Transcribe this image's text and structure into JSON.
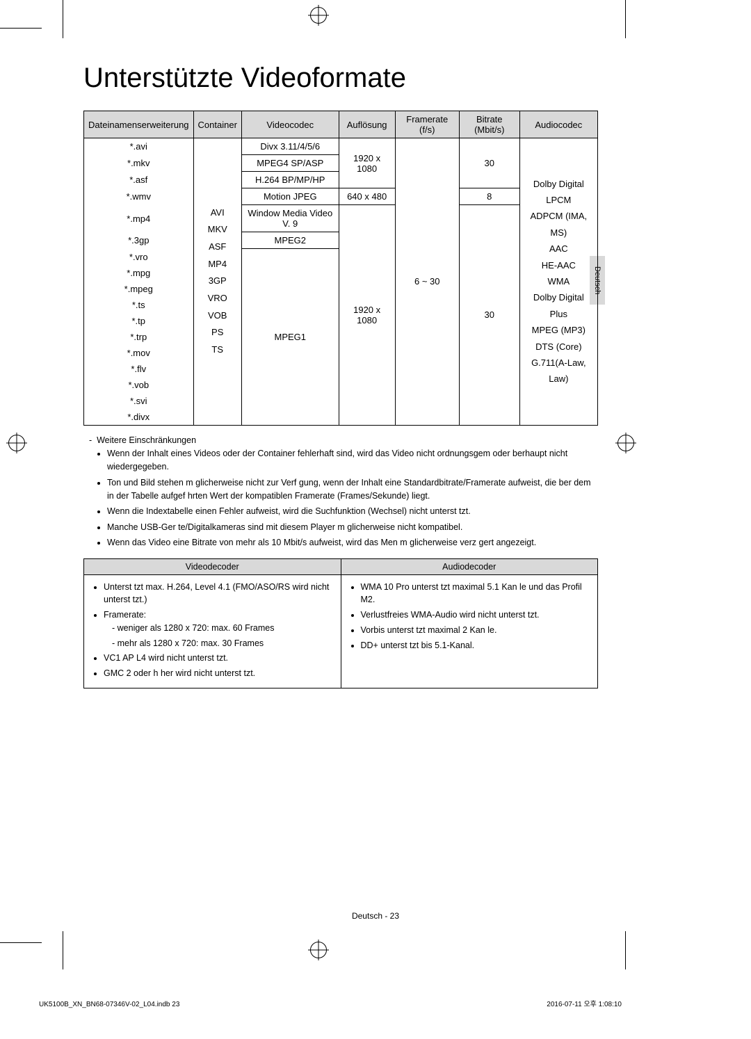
{
  "title": "Unterstützte Videoformate",
  "side_tab": "Deutsch",
  "table1": {
    "headers": [
      "Dateinamenserweiterung",
      "Container",
      "Videocodec",
      "Auflösung",
      "Framerate (f/s)",
      "Bitrate (Mbit/s)",
      "Audiocodec"
    ],
    "ext": [
      "*.avi",
      "*.mkv",
      "*.asf",
      "*.wmv",
      "*.mp4",
      "*.3gp",
      "*.vro",
      "*.mpg",
      "*.mpeg",
      "*.ts",
      "*.tp",
      "*.trp",
      "*.mov",
      "*.flv",
      "*.vob",
      "*.svi",
      "*.divx"
    ],
    "containers": "AVI\nMKV\nASF\nMP4\n3GP\nVRO\nVOB\nPS\nTS",
    "codec_divx": "Divx 3.11/4/5/6",
    "codec_mpeg4": "MPEG4 SP/ASP",
    "codec_h264": "H.264 BP/MP/HP",
    "codec_mjpeg": "Motion JPEG",
    "codec_wmv": "Window Media Video V. 9",
    "codec_mpeg2": "MPEG2",
    "codec_mpeg1": "MPEG1",
    "res_1920a": "1920 x 1080",
    "res_640": "640 x 480",
    "res_1920b": "1920 x 1080",
    "fps": "6 ~ 30",
    "br_30a": "30",
    "br_8": "8",
    "br_30b": "30",
    "audio": "Dolby Digital\nLPCM\nADPCM (IMA, MS)\nAAC\nHE-AAC\nWMA\nDolby Digital Plus\nMPEG (MP3)\nDTS (Core)\nG.711(A-Law, Law)"
  },
  "notes_title": "Weitere Einschränkungen",
  "notes": [
    "Wenn der Inhalt eines Videos oder der Container fehlerhaft sind, wird das Video nicht ordnungsgem   oder  berhaupt nicht wiedergegeben.",
    "Ton und Bild stehen m glicherweise nicht zur Verf gung, wenn der Inhalt eine Standardbitrate/Framerate aufweist, die  ber dem in der Tabelle aufgef hrten Wert der kompatiblen Framerate (Frames/Sekunde) liegt.",
    "Wenn die Indextabelle einen Fehler aufweist, wird die Suchfunktion (Wechsel) nicht unterst tzt.",
    "Manche USB-Ger te/Digitalkameras sind mit diesem Player m glicherweise nicht kompatibel.",
    "Wenn das Video eine Bitrate von mehr als 10 Mbit/s aufweist, wird das Men  m glicherweise verz gert angezeigt."
  ],
  "decoders": {
    "headers": [
      "Videodecoder",
      "Audiodecoder"
    ],
    "video": {
      "l1": "Unterst tzt max. H.264, Level 4.1 (FMO/ASO/RS wird nicht unterst tzt.)",
      "l2": "Framerate:",
      "l2a": "weniger als 1280 x 720: max. 60 Frames",
      "l2b": "mehr als 1280 x 720: max. 30 Frames",
      "l3": "VC1 AP L4 wird nicht unterst tzt.",
      "l4": "GMC 2 oder h her wird nicht unterst tzt."
    },
    "audio": {
      "l1": "WMA 10 Pro unterst tzt maximal 5.1 Kan le und das Profil M2.",
      "l2": "Verlustfreies WMA-Audio wird nicht unterst tzt.",
      "l3": "Vorbis unterst tzt maximal 2 Kan le.",
      "l4": "DD+ unterst tzt bis 5.1-Kanal."
    }
  },
  "footer_center": "Deutsch - 23",
  "footer_left": "UK5100B_XN_BN68-07346V-02_L04.indb   23",
  "footer_right": "2016-07-11   오후 1:08:10"
}
